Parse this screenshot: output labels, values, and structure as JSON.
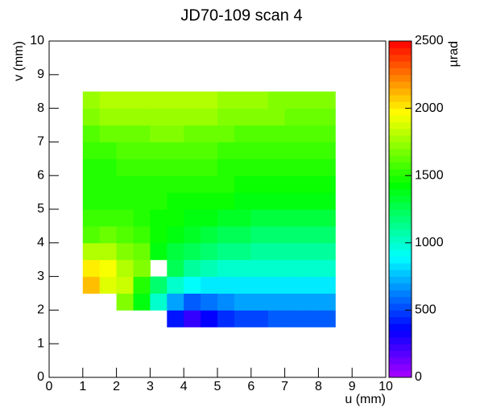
{
  "chart_data": {
    "type": "heatmap",
    "title": "JD70-109 scan 4",
    "x_label": "u (mm)",
    "y_label": "v (mm)",
    "colorbar_label": "µrad",
    "xlim": [
      0,
      10
    ],
    "ylim": [
      0,
      10
    ],
    "xticks": [
      0,
      1,
      2,
      3,
      4,
      5,
      6,
      7,
      8,
      9,
      10
    ],
    "yticks": [
      0,
      1,
      2,
      3,
      4,
      5,
      6,
      7,
      8,
      9,
      10
    ],
    "zlim": [
      0,
      2500
    ],
    "zticks": [
      0,
      500,
      1000,
      1500,
      2000,
      2500
    ],
    "x_edges": [
      1,
      1.5,
      2,
      2.5,
      3,
      3.5,
      4,
      4.5,
      5,
      5.5,
      6,
      6.5,
      7,
      7.5,
      8,
      8.5
    ],
    "y_edges": [
      1.5,
      2,
      2.5,
      3,
      3.5,
      4,
      4.5,
      5,
      5.5,
      6,
      6.5,
      7,
      7.5,
      8,
      8.5
    ],
    "z": [
      [
        null,
        null,
        null,
        null,
        null,
        400,
        250,
        350,
        450,
        500,
        500,
        550,
        550,
        550,
        550
      ],
      [
        null,
        null,
        1700,
        1400,
        1000,
        700,
        550,
        600,
        650,
        700,
        700,
        700,
        700,
        700,
        700
      ],
      [
        2100,
        1900,
        1850,
        1500,
        1200,
        1000,
        900,
        850,
        850,
        850,
        850,
        850,
        850,
        850,
        850
      ],
      [
        2000,
        1950,
        1800,
        1700,
        null,
        1250,
        1100,
        1050,
        1000,
        1000,
        1000,
        1000,
        1000,
        1000,
        1000
      ],
      [
        1800,
        1800,
        1700,
        1650,
        1400,
        1300,
        1250,
        1200,
        1150,
        1150,
        1100,
        1100,
        1100,
        1100,
        1100
      ],
      [
        1600,
        1650,
        1600,
        1550,
        1450,
        1400,
        1350,
        1300,
        1250,
        1250,
        1200,
        1200,
        1200,
        1200,
        1200
      ],
      [
        1550,
        1550,
        1550,
        1500,
        1450,
        1450,
        1400,
        1400,
        1350,
        1350,
        1300,
        1300,
        1300,
        1300,
        1300
      ],
      [
        1500,
        1500,
        1500,
        1500,
        1500,
        1450,
        1450,
        1450,
        1450,
        1400,
        1400,
        1400,
        1400,
        1400,
        1400
      ],
      [
        1500,
        1500,
        1500,
        1500,
        1500,
        1500,
        1500,
        1500,
        1500,
        1450,
        1450,
        1450,
        1450,
        1450,
        1450
      ],
      [
        1500,
        1500,
        1550,
        1550,
        1550,
        1550,
        1550,
        1550,
        1500,
        1500,
        1500,
        1500,
        1500,
        1500,
        1500
      ],
      [
        1550,
        1550,
        1600,
        1600,
        1600,
        1600,
        1600,
        1600,
        1550,
        1550,
        1550,
        1550,
        1550,
        1550,
        1550
      ],
      [
        1600,
        1650,
        1650,
        1650,
        1700,
        1700,
        1650,
        1650,
        1650,
        1600,
        1600,
        1600,
        1600,
        1600,
        1600
      ],
      [
        1700,
        1750,
        1750,
        1750,
        1750,
        1750,
        1750,
        1750,
        1700,
        1700,
        1700,
        1700,
        1650,
        1650,
        1650
      ],
      [
        1750,
        1800,
        1800,
        1800,
        1800,
        1800,
        1800,
        1800,
        1750,
        1750,
        1750,
        1700,
        1700,
        1700,
        1700
      ]
    ]
  }
}
